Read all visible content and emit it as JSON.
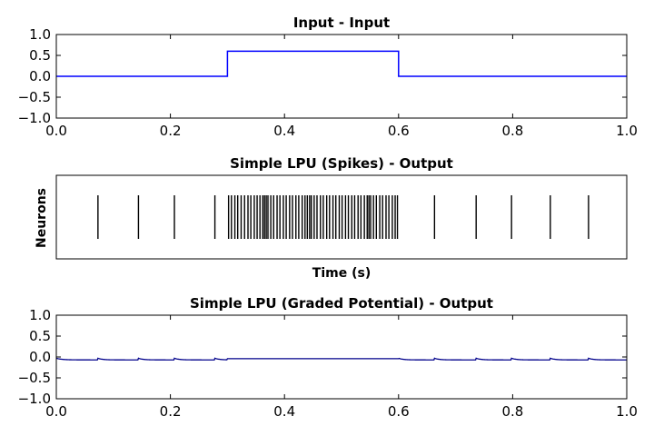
{
  "chart_data": [
    {
      "type": "line",
      "title": "Input - Input",
      "xlabel": "",
      "ylabel": "",
      "xlim": [
        0.0,
        1.0
      ],
      "ylim": [
        -1.0,
        1.0
      ],
      "xticks": [
        "0.0",
        "0.2",
        "0.4",
        "0.6",
        "0.8",
        "1.0"
      ],
      "yticks": [
        "1.0",
        "0.5",
        "0.0",
        "−1.0"
      ],
      "ytick_values": [
        1.0,
        0.5,
        0.0,
        -1.0
      ],
      "yticks_extra": [
        "−0.5"
      ],
      "ytick_extra_values": [
        -0.5
      ],
      "series": [
        {
          "color": "#0000ff",
          "x": [
            0.0,
            0.3,
            0.3,
            0.6,
            0.6,
            1.0
          ],
          "y": [
            0.0,
            0.0,
            0.6,
            0.6,
            0.0,
            0.0
          ]
        }
      ]
    },
    {
      "type": "scatter",
      "title": "Simple LPU (Spikes) - Output",
      "xlabel": "Time (s)",
      "ylabel": "Neurons",
      "xlim": [
        0.0,
        1.0
      ],
      "spike_color": "#000000",
      "spike_times": [
        0.073,
        0.144,
        0.207,
        0.278,
        0.302,
        0.307,
        0.313,
        0.318,
        0.324,
        0.33,
        0.336,
        0.341,
        0.347,
        0.352,
        0.357,
        0.362,
        0.365,
        0.368,
        0.371,
        0.376,
        0.381,
        0.387,
        0.392,
        0.398,
        0.403,
        0.409,
        0.414,
        0.42,
        0.425,
        0.431,
        0.436,
        0.44,
        0.444,
        0.447,
        0.452,
        0.457,
        0.463,
        0.468,
        0.474,
        0.479,
        0.485,
        0.49,
        0.496,
        0.501,
        0.507,
        0.512,
        0.518,
        0.523,
        0.529,
        0.534,
        0.54,
        0.545,
        0.548,
        0.551,
        0.556,
        0.561,
        0.567,
        0.572,
        0.578,
        0.583,
        0.589,
        0.594,
        0.598,
        0.663,
        0.736,
        0.798,
        0.866,
        0.933
      ]
    },
    {
      "type": "line",
      "title": "Simple LPU (Graded Potential) - Output",
      "xlabel": "",
      "ylabel": "",
      "xlim": [
        0.0,
        1.0
      ],
      "ylim": [
        -1.0,
        1.0
      ],
      "xticks": [
        "0.0",
        "0.2",
        "0.4",
        "0.6",
        "0.8",
        "1.0"
      ],
      "yticks": [
        "1.0",
        "0.5",
        "0.0",
        "−1.0"
      ],
      "ytick_values": [
        1.0,
        0.5,
        0.0,
        -1.0
      ],
      "yticks_extra": [
        "−0.5"
      ],
      "ytick_extra_values": [
        -0.5
      ],
      "series": [
        {
          "color": "#00008b",
          "reset_times": [
            0.073,
            0.144,
            0.207,
            0.278,
            0.663,
            0.736,
            0.798,
            0.866,
            0.933
          ],
          "baseline": -0.07,
          "peak": -0.03,
          "plateau_range": [
            0.3,
            0.6
          ],
          "plateau_value": -0.04
        }
      ]
    }
  ]
}
